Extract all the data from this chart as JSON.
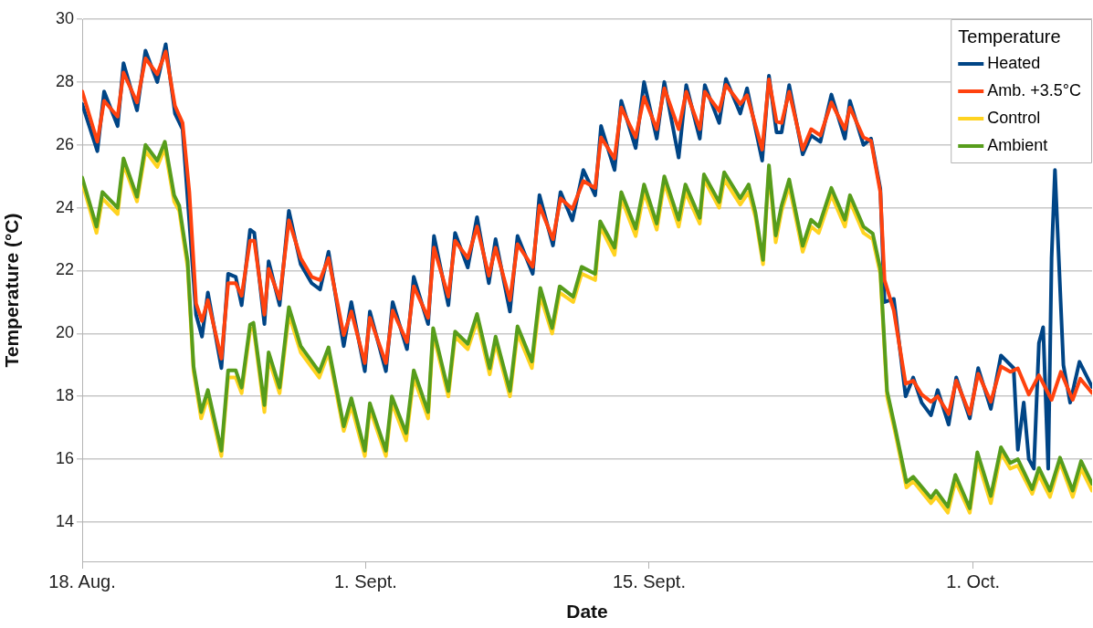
{
  "chart_data": {
    "type": "line",
    "xlabel": "Date",
    "ylabel": "Temperature (°C)",
    "legend_title": "Temperature",
    "legend": "top right",
    "grid": "y",
    "marker": "none",
    "line_style": "solid",
    "xlim": [
      "--08-18",
      "--10-06T21:00"
    ],
    "xticks": [
      {
        "value": "--08-18",
        "label": "18. Aug."
      },
      {
        "value": "--09-01",
        "label": "1. Sept."
      },
      {
        "value": "--09-15",
        "label": "15. Sept."
      },
      {
        "value": "--10-01",
        "label": "1. Oct."
      }
    ],
    "ylim": [
      12.75,
      30
    ],
    "yticks": [
      14,
      16,
      18,
      20,
      22,
      24,
      26,
      28,
      30
    ],
    "series": [
      {
        "name": "Heated",
        "color": "#004586",
        "x": [
          "--08-18T00:00",
          "--08-18T18:00",
          "--08-19T02:00",
          "--08-19T18:00",
          "--08-20T01:00",
          "--08-20T17:00",
          "--08-21T03:00",
          "--08-21T17:00",
          "--08-22T03:00",
          "--08-22T14:00",
          "--08-22T23:00",
          "--08-23T07:00",
          "--08-23T15:00",
          "--08-23T22:00",
          "--08-24T05:00",
          "--08-24T21:00",
          "--08-25T05:00",
          "--08-25T14:00",
          "--08-25T21:00",
          "--08-26T07:00",
          "--08-26T12:00",
          "--08-27T00:00",
          "--08-27T05:00",
          "--08-27T18:00",
          "--08-28T05:00",
          "--08-28T19:00",
          "--08-29T08:00",
          "--08-29T18:00",
          "--08-30T04:00",
          "--08-30T22:00",
          "--08-31T07:00",
          "--08-31T23:00",
          "--09-01T05:00",
          "--09-02T00:00",
          "--09-02T08:00",
          "--09-03T01:00",
          "--09-03T09:00",
          "--09-04T02:00",
          "--09-04T09:00",
          "--09-05T02:00",
          "--09-05T10:00",
          "--09-06T01:00",
          "--09-06T12:00",
          "--09-07T02:00",
          "--09-07T10:00",
          "--09-08T03:00",
          "--09-08T12:00",
          "--09-09T06:00",
          "--09-09T14:00",
          "--09-10T06:00",
          "--09-10T15:00",
          "--09-11T05:00",
          "--09-11T18:00",
          "--09-12T08:00",
          "--09-12T15:00",
          "--09-13T07:00",
          "--09-13T15:00",
          "--09-14T08:00",
          "--09-14T18:00",
          "--09-15T09:00",
          "--09-15T18:00",
          "--09-16T11:00",
          "--09-16T20:00",
          "--09-17T12:00",
          "--09-17T18:00",
          "--09-18T11:00",
          "--09-18T19:00",
          "--09-19T12:00",
          "--09-19T20:00",
          "--09-20T14:00",
          "--09-20T22:00",
          "--09-21T07:00",
          "--09-21T13:00",
          "--09-21T22:00",
          "--09-22T14:00",
          "--09-23T00:00",
          "--09-23T11:00",
          "--09-24T00:00",
          "--09-24T16:00",
          "--09-24T22:00",
          "--09-25T14:00",
          "--09-25T23:00",
          "--09-26T10:00",
          "--09-26T15:00",
          "--09-27T02:00",
          "--09-27T16:00",
          "--09-28T01:00",
          "--09-28T11:00",
          "--09-28T22:00",
          "--09-29T06:00",
          "--09-29T19:00",
          "--09-30T04:00",
          "--09-30T20:00",
          "--10-01T06:00",
          "--10-01T21:00",
          "--10-02T09:00",
          "--10-03T00:00",
          "--10-03T05:00",
          "--10-03T12:00",
          "--10-03T18:00",
          "--10-04T00:00",
          "--10-04T06:00",
          "--10-04T11:00",
          "--10-04T17:00",
          "--10-04T21:00",
          "--10-05T01:00",
          "--10-05T11:00",
          "--10-05T19:00",
          "--10-06T06:00",
          "--10-06T21:00"
        ],
        "values": [
          27.3,
          25.8,
          27.7,
          26.6,
          28.6,
          27.1,
          29.0,
          28.0,
          29.2,
          27.0,
          26.5,
          null,
          20.6,
          19.9,
          21.3,
          18.9,
          21.9,
          21.8,
          20.9,
          23.3,
          23.2,
          20.3,
          22.3,
          20.9,
          23.9,
          22.2,
          21.6,
          21.4,
          22.6,
          19.6,
          21.0,
          18.8,
          20.7,
          18.8,
          21.0,
          19.5,
          21.8,
          20.3,
          23.1,
          20.9,
          23.2,
          22.1,
          23.7,
          21.6,
          23.0,
          20.7,
          23.1,
          21.9,
          24.4,
          22.8,
          24.5,
          23.6,
          25.2,
          24.4,
          26.6,
          25.2,
          27.4,
          25.9,
          28.0,
          26.2,
          28.0,
          25.6,
          27.9,
          26.2,
          27.9,
          26.7,
          28.1,
          27.0,
          27.8,
          25.5,
          28.2,
          26.4,
          26.4,
          27.9,
          25.7,
          26.3,
          26.1,
          27.6,
          26.2,
          27.4,
          26.0,
          26.2,
          24.6,
          21.0,
          21.1,
          18.0,
          18.6,
          17.8,
          17.4,
          18.2,
          17.1,
          18.6,
          17.3,
          18.9,
          17.6,
          19.3,
          18.9,
          16.3,
          17.8,
          16.0,
          15.7,
          19.7,
          20.2,
          15.7,
          22.4,
          25.2,
          19.0,
          17.8,
          19.1,
          18.3
        ]
      },
      {
        "name": "Amb. +3.5°C",
        "color": "#ff420e",
        "x": [
          "--08-18T00:00",
          "--08-18T18:00",
          "--08-19T02:00",
          "--08-19T18:00",
          "--08-20T01:00",
          "--08-20T17:00",
          "--08-21T03:00",
          "--08-21T17:00",
          "--08-22T03:00",
          "--08-22T14:00",
          "--08-22T23:00",
          "--08-23T07:00",
          "--08-23T15:00",
          "--08-23T22:00",
          "--08-24T05:00",
          "--08-24T21:00",
          "--08-25T05:00",
          "--08-25T14:00",
          "--08-25T21:00",
          "--08-26T07:00",
          "--08-26T12:00",
          "--08-27T00:00",
          "--08-27T05:00",
          "--08-27T18:00",
          "--08-28T05:00",
          "--08-28T19:00",
          "--08-29T08:00",
          "--08-29T18:00",
          "--08-30T04:00",
          "--08-30T22:00",
          "--08-31T07:00",
          "--08-31T23:00",
          "--09-01T05:00",
          "--09-02T00:00",
          "--09-02T08:00",
          "--09-03T01:00",
          "--09-03T09:00",
          "--09-04T02:00",
          "--09-04T09:00",
          "--09-05T02:00",
          "--09-05T10:00",
          "--09-06T01:00",
          "--09-06T12:00",
          "--09-07T02:00",
          "--09-07T10:00",
          "--09-08T03:00",
          "--09-08T12:00",
          "--09-09T06:00",
          "--09-09T14:00",
          "--09-10T06:00",
          "--09-10T15:00",
          "--09-11T05:00",
          "--09-11T18:00",
          "--09-12T08:00",
          "--09-12T15:00",
          "--09-13T07:00",
          "--09-13T15:00",
          "--09-14T08:00",
          "--09-14T18:00",
          "--09-15T09:00",
          "--09-15T18:00",
          "--09-16T11:00",
          "--09-16T20:00",
          "--09-17T12:00",
          "--09-17T18:00",
          "--09-18T11:00",
          "--09-18T19:00",
          "--09-19T12:00",
          "--09-19T20:00",
          "--09-20T14:00",
          "--09-20T22:00",
          "--09-21T07:00",
          "--09-21T13:00",
          "--09-21T22:00",
          "--09-22T14:00",
          "--09-23T00:00",
          "--09-23T11:00",
          "--09-24T00:00",
          "--09-24T16:00",
          "--09-24T22:00",
          "--09-25T14:00",
          "--09-25T23:00",
          "--09-26T10:00",
          "--09-26T15:00",
          "--09-27T02:00",
          "--09-27T16:00",
          "--09-28T01:00",
          "--09-28T11:00",
          "--09-28T22:00",
          "--09-29T06:00",
          "--09-29T19:00",
          "--09-30T04:00",
          "--09-30T20:00",
          "--10-01T06:00",
          "--10-01T21:00",
          "--10-02T09:00",
          "--10-02T20:00",
          "--10-03T05:00",
          "--10-03T18:00",
          "--10-04T06:00",
          "--10-04T21:00",
          "--10-05T08:00",
          "--10-05T22:00",
          "--10-06T07:00",
          "--10-06T21:00"
        ],
        "values": [
          27.7,
          26.1,
          27.4,
          26.9,
          28.3,
          27.35,
          28.75,
          28.25,
          28.97,
          27.24,
          26.7,
          24.5,
          20.95,
          20.4,
          21.06,
          19.2,
          21.6,
          21.6,
          21.2,
          22.95,
          22.95,
          20.6,
          22.06,
          21.1,
          23.6,
          22.4,
          21.8,
          21.7,
          22.4,
          19.95,
          20.7,
          19.06,
          20.5,
          19.06,
          20.73,
          19.73,
          21.5,
          20.5,
          22.73,
          21.17,
          22.95,
          22.4,
          23.4,
          21.84,
          22.73,
          21.06,
          22.84,
          22.12,
          24.07,
          23.0,
          24.3,
          23.96,
          24.85,
          24.63,
          26.24,
          25.57,
          27.19,
          26.24,
          27.52,
          26.5,
          27.8,
          26.5,
          27.69,
          26.5,
          27.69,
          27.08,
          27.91,
          27.3,
          27.58,
          25.85,
          28.08,
          26.74,
          26.7,
          27.69,
          25.85,
          26.5,
          26.3,
          27.35,
          26.5,
          27.19,
          26.24,
          26.13,
          24.5,
          21.7,
          20.73,
          18.4,
          18.5,
          18.06,
          17.83,
          18.0,
          17.44,
          18.5,
          17.44,
          18.72,
          17.83,
          18.95,
          18.78,
          18.89,
          18.06,
          18.67,
          17.89,
          18.78,
          17.89,
          18.56,
          18.11
        ]
      },
      {
        "name": "Control",
        "color": "#ffd320",
        "x": [
          "--08-18T00:00",
          "--08-18T17:00",
          "--08-19T00:00",
          "--08-19T18:00",
          "--08-20T01:00",
          "--08-20T17:00",
          "--08-21T03:00",
          "--08-21T17:00",
          "--08-22T02:00",
          "--08-22T13:00",
          "--08-22T19:00",
          "--08-23T05:00",
          "--08-23T12:00",
          "--08-23T21:00",
          "--08-24T05:00",
          "--08-24T21:00",
          "--08-25T05:00",
          "--08-25T14:00",
          "--08-25T21:00",
          "--08-26T07:00",
          "--08-26T11:00",
          "--08-27T00:00",
          "--08-27T05:00",
          "--08-27T18:00",
          "--08-28T05:00",
          "--08-28T19:00",
          "--08-29T17:00",
          "--08-30T04:00",
          "--08-30T22:00",
          "--08-31T07:00",
          "--08-31T23:00",
          "--09-01T05:00",
          "--09-02T00:00",
          "--09-02T07:00",
          "--09-03T00:00",
          "--09-03T09:00",
          "--09-04T02:00",
          "--09-04T08:00",
          "--09-05T02:00",
          "--09-05T10:00",
          "--09-06T01:00",
          "--09-06T12:00",
          "--09-07T03:00",
          "--09-07T10:00",
          "--09-08T03:00",
          "--09-08T12:00",
          "--09-09T05:00",
          "--09-09T15:00",
          "--09-10T05:00",
          "--09-10T14:00",
          "--09-11T06:00",
          "--09-11T16:00",
          "--09-12T08:00",
          "--09-12T14:00",
          "--09-13T07:00",
          "--09-13T15:00",
          "--09-14T08:00",
          "--09-14T18:00",
          "--09-15T09:00",
          "--09-15T18:00",
          "--09-16T11:00",
          "--09-16T19:00",
          "--09-17T12:00",
          "--09-17T17:00",
          "--09-18T11:00",
          "--09-18T17:00",
          "--09-19T12:00",
          "--09-19T22:00",
          "--09-20T06:00",
          "--09-20T15:00",
          "--09-20T22:00",
          "--09-21T06:00",
          "--09-21T13:00",
          "--09-21T22:00",
          "--09-22T14:00",
          "--09-23T00:00",
          "--09-23T09:00",
          "--09-24T00:00",
          "--09-24T16:00",
          "--09-24T22:00",
          "--09-25T14:00",
          "--09-26T01:00",
          "--09-26T10:00",
          "--09-26T18:00",
          "--09-27T04:00",
          "--09-27T17:00",
          "--09-28T01:00",
          "--09-28T22:00",
          "--09-29T04:00",
          "--09-29T18:00",
          "--09-30T03:00",
          "--09-30T20:00",
          "--10-01T05:00",
          "--10-01T21:00",
          "--10-02T09:00",
          "--10-02T20:00",
          "--10-03T05:00",
          "--10-03T22:00",
          "--10-04T06:00",
          "--10-04T19:00",
          "--10-05T07:00",
          "--10-05T22:00",
          "--10-06T08:00",
          "--10-06T21:00"
        ],
        "values": [
          24.8,
          23.2,
          24.3,
          23.8,
          25.4,
          24.2,
          25.8,
          25.3,
          25.9,
          24.2,
          23.9,
          22.1,
          18.8,
          17.3,
          18.0,
          16.1,
          18.6,
          18.6,
          18.1,
          20.1,
          20.2,
          17.5,
          19.2,
          18.1,
          20.6,
          19.4,
          18.6,
          19.4,
          16.9,
          17.7,
          16.1,
          17.6,
          16.1,
          17.8,
          16.6,
          18.6,
          17.3,
          20.0,
          18.0,
          19.9,
          19.5,
          20.4,
          18.7,
          19.7,
          18.0,
          20.0,
          18.9,
          21.2,
          20.0,
          21.3,
          21.0,
          21.9,
          21.7,
          23.4,
          22.5,
          24.3,
          23.1,
          24.5,
          23.3,
          24.8,
          23.4,
          24.5,
          23.5,
          24.9,
          24.0,
          24.9,
          24.1,
          24.5,
          23.7,
          22.2,
          25.2,
          22.9,
          23.9,
          24.7,
          22.6,
          23.4,
          23.2,
          24.4,
          23.4,
          24.2,
          23.2,
          23.0,
          21.9,
          18.0,
          16.8,
          15.1,
          15.3,
          14.6,
          14.8,
          14.3,
          15.3,
          14.3,
          16.0,
          14.6,
          16.2,
          15.7,
          15.8,
          14.9,
          15.5,
          14.8,
          15.9,
          14.8,
          15.7,
          15.0
        ]
      },
      {
        "name": "Ambient",
        "color": "#579d1c",
        "x": [
          "--08-18T00:00",
          "--08-18T17:00",
          "--08-19T00:00",
          "--08-19T18:00",
          "--08-20T01:00",
          "--08-20T17:00",
          "--08-21T03:00",
          "--08-21T17:00",
          "--08-22T02:00",
          "--08-22T13:00",
          "--08-22T19:00",
          "--08-23T05:00",
          "--08-23T12:00",
          "--08-23T21:00",
          "--08-24T05:00",
          "--08-24T21:00",
          "--08-25T05:00",
          "--08-25T14:00",
          "--08-25T21:00",
          "--08-26T07:00",
          "--08-26T11:00",
          "--08-27T00:00",
          "--08-27T05:00",
          "--08-27T18:00",
          "--08-28T05:00",
          "--08-28T19:00",
          "--08-29T17:00",
          "--08-30T04:00",
          "--08-30T22:00",
          "--08-31T07:00",
          "--08-31T23:00",
          "--09-01T05:00",
          "--09-02T00:00",
          "--09-02T07:00",
          "--09-03T00:00",
          "--09-03T09:00",
          "--09-04T02:00",
          "--09-04T08:00",
          "--09-05T02:00",
          "--09-05T10:00",
          "--09-06T01:00",
          "--09-06T12:00",
          "--09-07T03:00",
          "--09-07T10:00",
          "--09-08T03:00",
          "--09-08T12:00",
          "--09-09T05:00",
          "--09-09T15:00",
          "--09-10T05:00",
          "--09-10T14:00",
          "--09-11T06:00",
          "--09-11T16:00",
          "--09-12T08:00",
          "--09-12T14:00",
          "--09-13T07:00",
          "--09-13T15:00",
          "--09-14T08:00",
          "--09-14T18:00",
          "--09-15T09:00",
          "--09-15T18:00",
          "--09-16T11:00",
          "--09-16T19:00",
          "--09-17T12:00",
          "--09-17T17:00",
          "--09-18T11:00",
          "--09-18T17:00",
          "--09-19T12:00",
          "--09-19T22:00",
          "--09-20T06:00",
          "--09-20T15:00",
          "--09-20T22:00",
          "--09-21T06:00",
          "--09-21T13:00",
          "--09-21T22:00",
          "--09-22T14:00",
          "--09-23T00:00",
          "--09-23T09:00",
          "--09-24T00:00",
          "--09-24T16:00",
          "--09-24T22:00",
          "--09-25T14:00",
          "--09-26T01:00",
          "--09-26T10:00",
          "--09-26T18:00",
          "--09-27T04:00",
          "--09-27T17:00",
          "--09-28T01:00",
          "--09-28T22:00",
          "--09-29T04:00",
          "--09-29T18:00",
          "--09-30T03:00",
          "--09-30T20:00",
          "--10-01T05:00",
          "--10-01T21:00",
          "--10-02T09:00",
          "--10-02T20:00",
          "--10-03T05:00",
          "--10-03T22:00",
          "--10-04T06:00",
          "--10-04T19:00",
          "--10-05T07:00",
          "--10-05T22:00",
          "--10-06T08:00",
          "--10-06T21:00"
        ],
        "values": [
          24.96,
          23.4,
          24.5,
          24.0,
          25.57,
          24.35,
          26.0,
          25.5,
          26.1,
          24.4,
          24.07,
          22.3,
          18.95,
          17.5,
          18.2,
          16.27,
          18.83,
          18.83,
          18.28,
          20.28,
          20.34,
          17.72,
          19.4,
          18.28,
          20.84,
          19.6,
          18.78,
          19.56,
          17.05,
          17.94,
          16.27,
          17.78,
          16.27,
          18.0,
          16.83,
          18.83,
          17.5,
          20.17,
          18.17,
          20.06,
          19.67,
          20.62,
          18.89,
          19.9,
          18.17,
          20.23,
          19.11,
          21.45,
          20.17,
          21.5,
          21.17,
          22.12,
          21.9,
          23.57,
          22.73,
          24.5,
          23.34,
          24.74,
          23.5,
          25.0,
          23.62,
          24.74,
          23.68,
          25.06,
          24.18,
          25.13,
          24.3,
          24.74,
          23.85,
          22.34,
          25.35,
          23.12,
          24.07,
          24.9,
          22.79,
          23.62,
          23.4,
          24.63,
          23.62,
          24.4,
          23.4,
          23.18,
          22.06,
          18.17,
          16.94,
          15.27,
          15.44,
          14.77,
          15.0,
          14.49,
          15.5,
          14.44,
          16.22,
          14.83,
          16.38,
          15.88,
          16.0,
          15.05,
          15.72,
          15.0,
          16.05,
          15.0,
          15.94,
          15.22
        ]
      }
    ]
  }
}
